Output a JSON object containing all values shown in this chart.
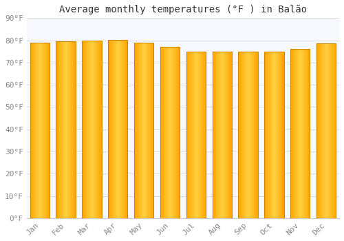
{
  "title": "Average monthly temperatures (°F ) in Balão",
  "months": [
    "Jan",
    "Feb",
    "Mar",
    "Apr",
    "May",
    "Jun",
    "Jul",
    "Aug",
    "Sep",
    "Oct",
    "Nov",
    "Dec"
  ],
  "values": [
    79.0,
    79.5,
    80.0,
    80.2,
    79.0,
    77.0,
    75.0,
    74.8,
    74.8,
    75.0,
    76.0,
    78.5
  ],
  "bar_color_center": "#FFD040",
  "bar_color_edge": "#FFA500",
  "bar_border_color": "#CC8800",
  "background_color": "#FFFFFF",
  "plot_bg_color": "#F8F8FF",
  "grid_color": "#DDDDDD",
  "tick_label_color": "#888888",
  "title_color": "#333333",
  "ylim": [
    0,
    90
  ],
  "yticks": [
    0,
    10,
    20,
    30,
    40,
    50,
    60,
    70,
    80,
    90
  ],
  "ytick_labels": [
    "0°F",
    "10°F",
    "20°F",
    "30°F",
    "40°F",
    "50°F",
    "60°F",
    "70°F",
    "80°F",
    "90°F"
  ],
  "font_family": "monospace",
  "title_fontsize": 10,
  "tick_fontsize": 8
}
